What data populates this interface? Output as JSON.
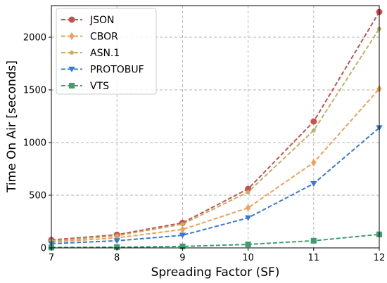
{
  "chart_data": {
    "type": "line",
    "xlabel": "Spreading Factor (SF)",
    "ylabel": "Time On Air [seconds]",
    "x": [
      7,
      8,
      9,
      10,
      11,
      12
    ],
    "xlim": [
      7,
      12
    ],
    "ylim": [
      0,
      2300
    ],
    "xticks": [
      "7",
      "8",
      "9",
      "10",
      "11",
      "12"
    ],
    "yticks": [
      0,
      500,
      1000,
      1500,
      2000
    ],
    "ytick_labels": [
      "0",
      "500",
      "1000",
      "1500",
      "2000"
    ],
    "grid": true,
    "legend_position": "top-left",
    "series": [
      {
        "name": "JSON",
        "color": "#c9504f",
        "marker": "circle",
        "values": [
          75,
          125,
          238,
          560,
          1200,
          2240
        ]
      },
      {
        "name": "CBOR",
        "color": "#f0a05a",
        "marker": "diamond",
        "values": [
          55,
          95,
          175,
          380,
          810,
          1510
        ]
      },
      {
        "name": "ASN.1",
        "color": "#c4ad67",
        "marker": "pentagon",
        "values": [
          65,
          115,
          225,
          530,
          1115,
          2080
        ]
      },
      {
        "name": "PROTOBUF",
        "color": "#3a78d6",
        "marker": "triangle-down",
        "values": [
          40,
          68,
          120,
          285,
          610,
          1140
        ]
      },
      {
        "name": "VTS",
        "color": "#3f9e6c",
        "marker": "square",
        "values": [
          4,
          7,
          14,
          33,
          68,
          128
        ]
      }
    ]
  }
}
